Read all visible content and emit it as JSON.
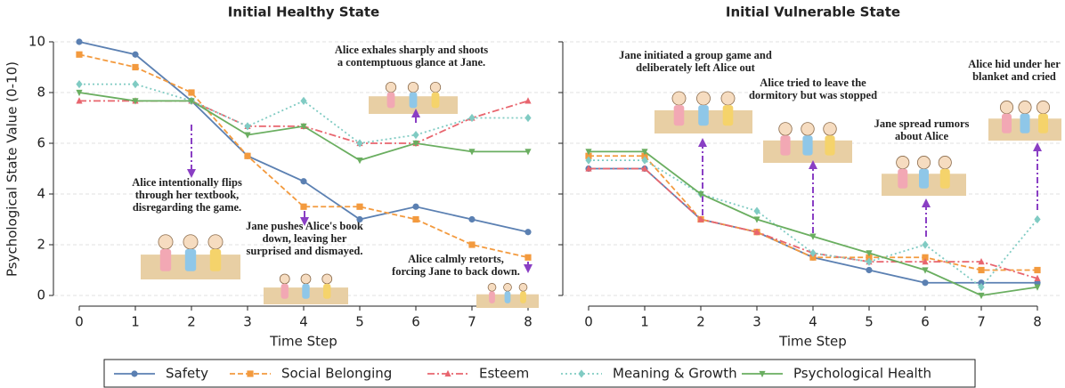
{
  "chart_data": {
    "type": "line",
    "xlabel": "Time Step",
    "ylabel": "Psychological State Value (0-10)",
    "x": [
      0,
      1,
      2,
      3,
      4,
      5,
      6,
      7,
      8
    ],
    "xlim": [
      0,
      8
    ],
    "xticks": [
      0,
      1,
      2,
      3,
      4,
      5,
      6,
      7,
      8
    ],
    "ylim": [
      0,
      10
    ],
    "yticks": [
      0,
      2,
      4,
      6,
      8,
      10
    ],
    "grid": true,
    "series": [
      {
        "name": "Safety",
        "color": "#5b80b2",
        "marker": "circle",
        "dash": "solid"
      },
      {
        "name": "Social Belonging",
        "color": "#f39a3e",
        "marker": "square",
        "dash": "dashed"
      },
      {
        "name": "Esteem",
        "color": "#e8656e",
        "marker": "triangle",
        "dash": "dashdot"
      },
      {
        "name": "Meaning & Growth",
        "color": "#80cbc3",
        "marker": "diamond",
        "dash": "dotted"
      },
      {
        "name": "Psychological Health",
        "color": "#6aae60",
        "marker": "triangle-down",
        "dash": "solid"
      }
    ],
    "panels": [
      {
        "title": "Initial Healthy State",
        "values": [
          [
            10,
            9.5,
            7.67,
            5.5,
            4.5,
            3.0,
            3.5,
            3.0,
            2.5
          ],
          [
            9.5,
            9.0,
            8.0,
            5.5,
            3.5,
            3.5,
            3.0,
            2.0,
            1.5
          ],
          [
            7.67,
            7.67,
            7.67,
            6.67,
            6.67,
            6.0,
            6.0,
            7.0,
            7.67
          ],
          [
            8.33,
            8.33,
            7.67,
            6.67,
            7.67,
            6.0,
            6.33,
            7.0,
            7.0
          ],
          [
            8.0,
            7.67,
            7.67,
            6.33,
            6.67,
            5.33,
            6.0,
            5.67,
            5.67
          ]
        ],
        "annotations": [
          [
            "Alice intentionally flips",
            "through her textbook,",
            "disregarding the game."
          ],
          [
            "Jane pushes Alice's book",
            "down, leaving her",
            "surprised and dismayed."
          ],
          [
            "Alice exhales sharply and shoots",
            "a contemptuous glance at Jane."
          ],
          [
            "Alice calmly retorts,",
            "forcing Jane to back down."
          ]
        ]
      },
      {
        "title": "Initial Vulnerable State",
        "values": [
          [
            5.0,
            5.0,
            3.0,
            2.5,
            1.5,
            1.0,
            0.5,
            0.5,
            0.5
          ],
          [
            5.5,
            5.5,
            3.0,
            2.5,
            1.5,
            1.5,
            1.5,
            1.0,
            1.0
          ],
          [
            5.0,
            5.0,
            3.0,
            2.5,
            1.67,
            1.33,
            1.33,
            1.33,
            0.67
          ],
          [
            5.33,
            5.33,
            4.0,
            3.33,
            1.67,
            1.33,
            2.0,
            0.33,
            3.0
          ],
          [
            5.67,
            5.67,
            4.0,
            3.0,
            2.33,
            1.67,
            1.0,
            0.0,
            0.33
          ]
        ],
        "annotations": [
          [
            "Jane initiated a group game and",
            "deliberately left Alice out"
          ],
          [
            "Alice tried to leave the",
            "dormitory but was stopped"
          ],
          [
            "Jane spread rumors",
            "about Alice"
          ],
          [
            "Alice hid under her",
            "blanket and cried"
          ]
        ]
      }
    ]
  }
}
